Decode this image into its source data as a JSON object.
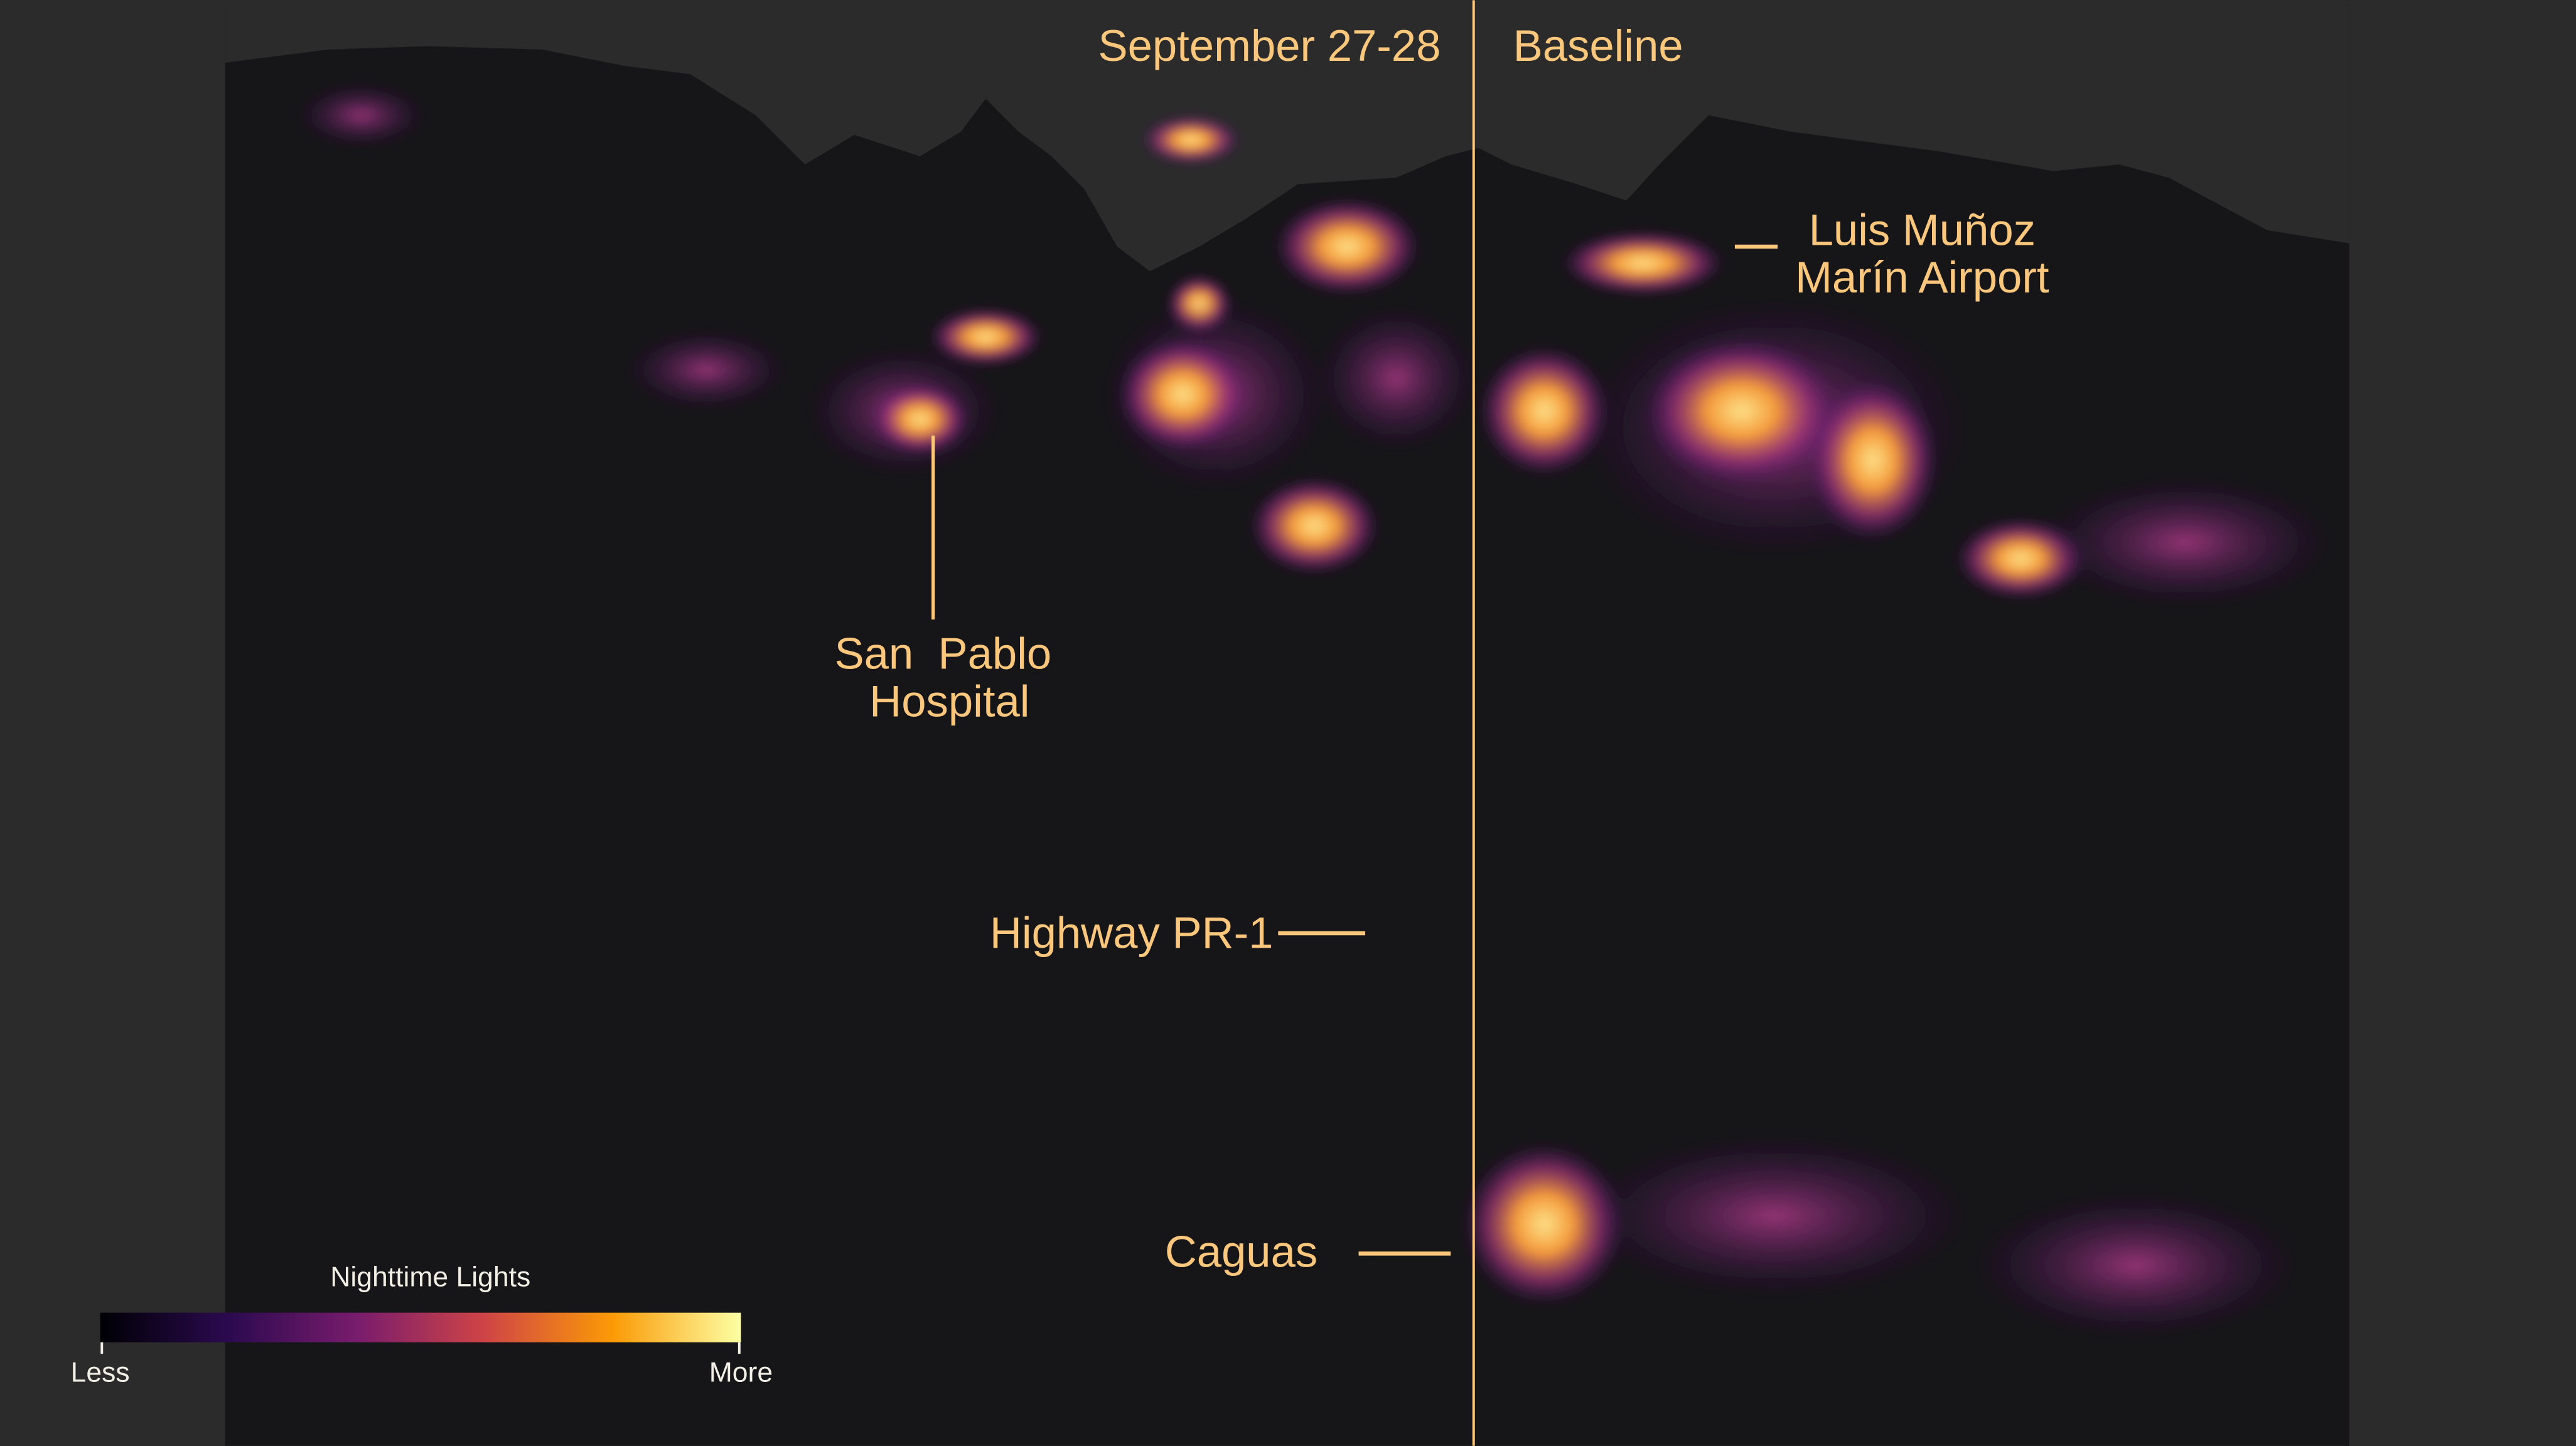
{
  "panels": {
    "left_title": "September 27-28",
    "right_title": "Baseline"
  },
  "labels": {
    "airport": [
      "Luis Muñoz",
      "Marín Airport"
    ],
    "hospital": [
      "San  Pablo",
      "Hospital"
    ],
    "highway": "Highway PR-1",
    "caguas": "Caguas"
  },
  "legend": {
    "title": "Nighttime Lights",
    "low": "Less",
    "high": "More"
  }
}
